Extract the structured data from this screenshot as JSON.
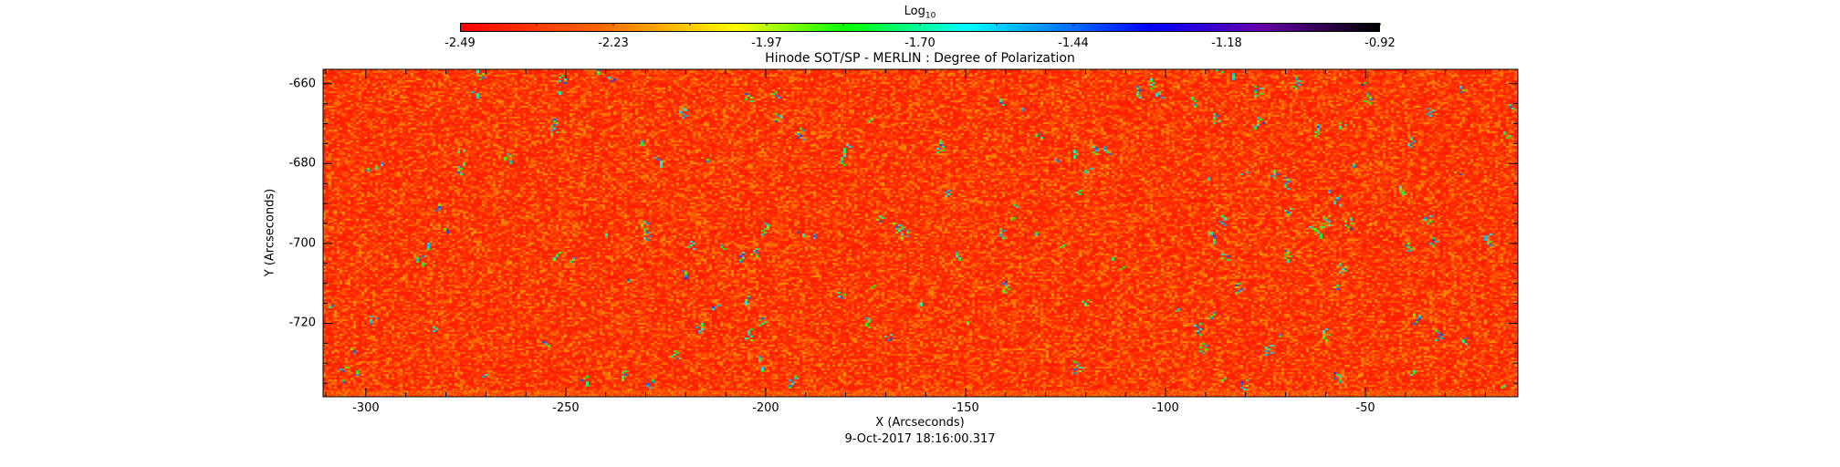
{
  "chart_data": {
    "type": "heatmap",
    "title": "Hinode SOT/SP - MERLIN : Degree of Polarization",
    "xlabel": "X (Arcseconds)",
    "ylabel": "Y (Arcseconds)",
    "subtitle": "9-Oct-2017 18:16:00.317",
    "xlim": [
      -310.7,
      -11.9
    ],
    "ylim": [
      -738.4,
      -656.4
    ],
    "xticks": [
      -300,
      -250,
      -200,
      -150,
      -100,
      -50
    ],
    "yticks": [
      -660,
      -680,
      -700,
      -720
    ],
    "colorbar": {
      "label_base": "Log",
      "label_sub": "10",
      "ticks": [
        "-2.49",
        "-2.23",
        "-1.97",
        "-1.70",
        "-1.44",
        "-1.18",
        "-0.92"
      ],
      "range": [
        -2.49,
        -0.92
      ],
      "colormap_stops": [
        "#ff0000",
        "#ff6600",
        "#ffff00",
        "#00ff00",
        "#00ffff",
        "#0000ff",
        "#6600aa",
        "#000000"
      ]
    },
    "description_values": {
      "dominant_range": [
        -2.49,
        -2.1
      ]
    }
  }
}
